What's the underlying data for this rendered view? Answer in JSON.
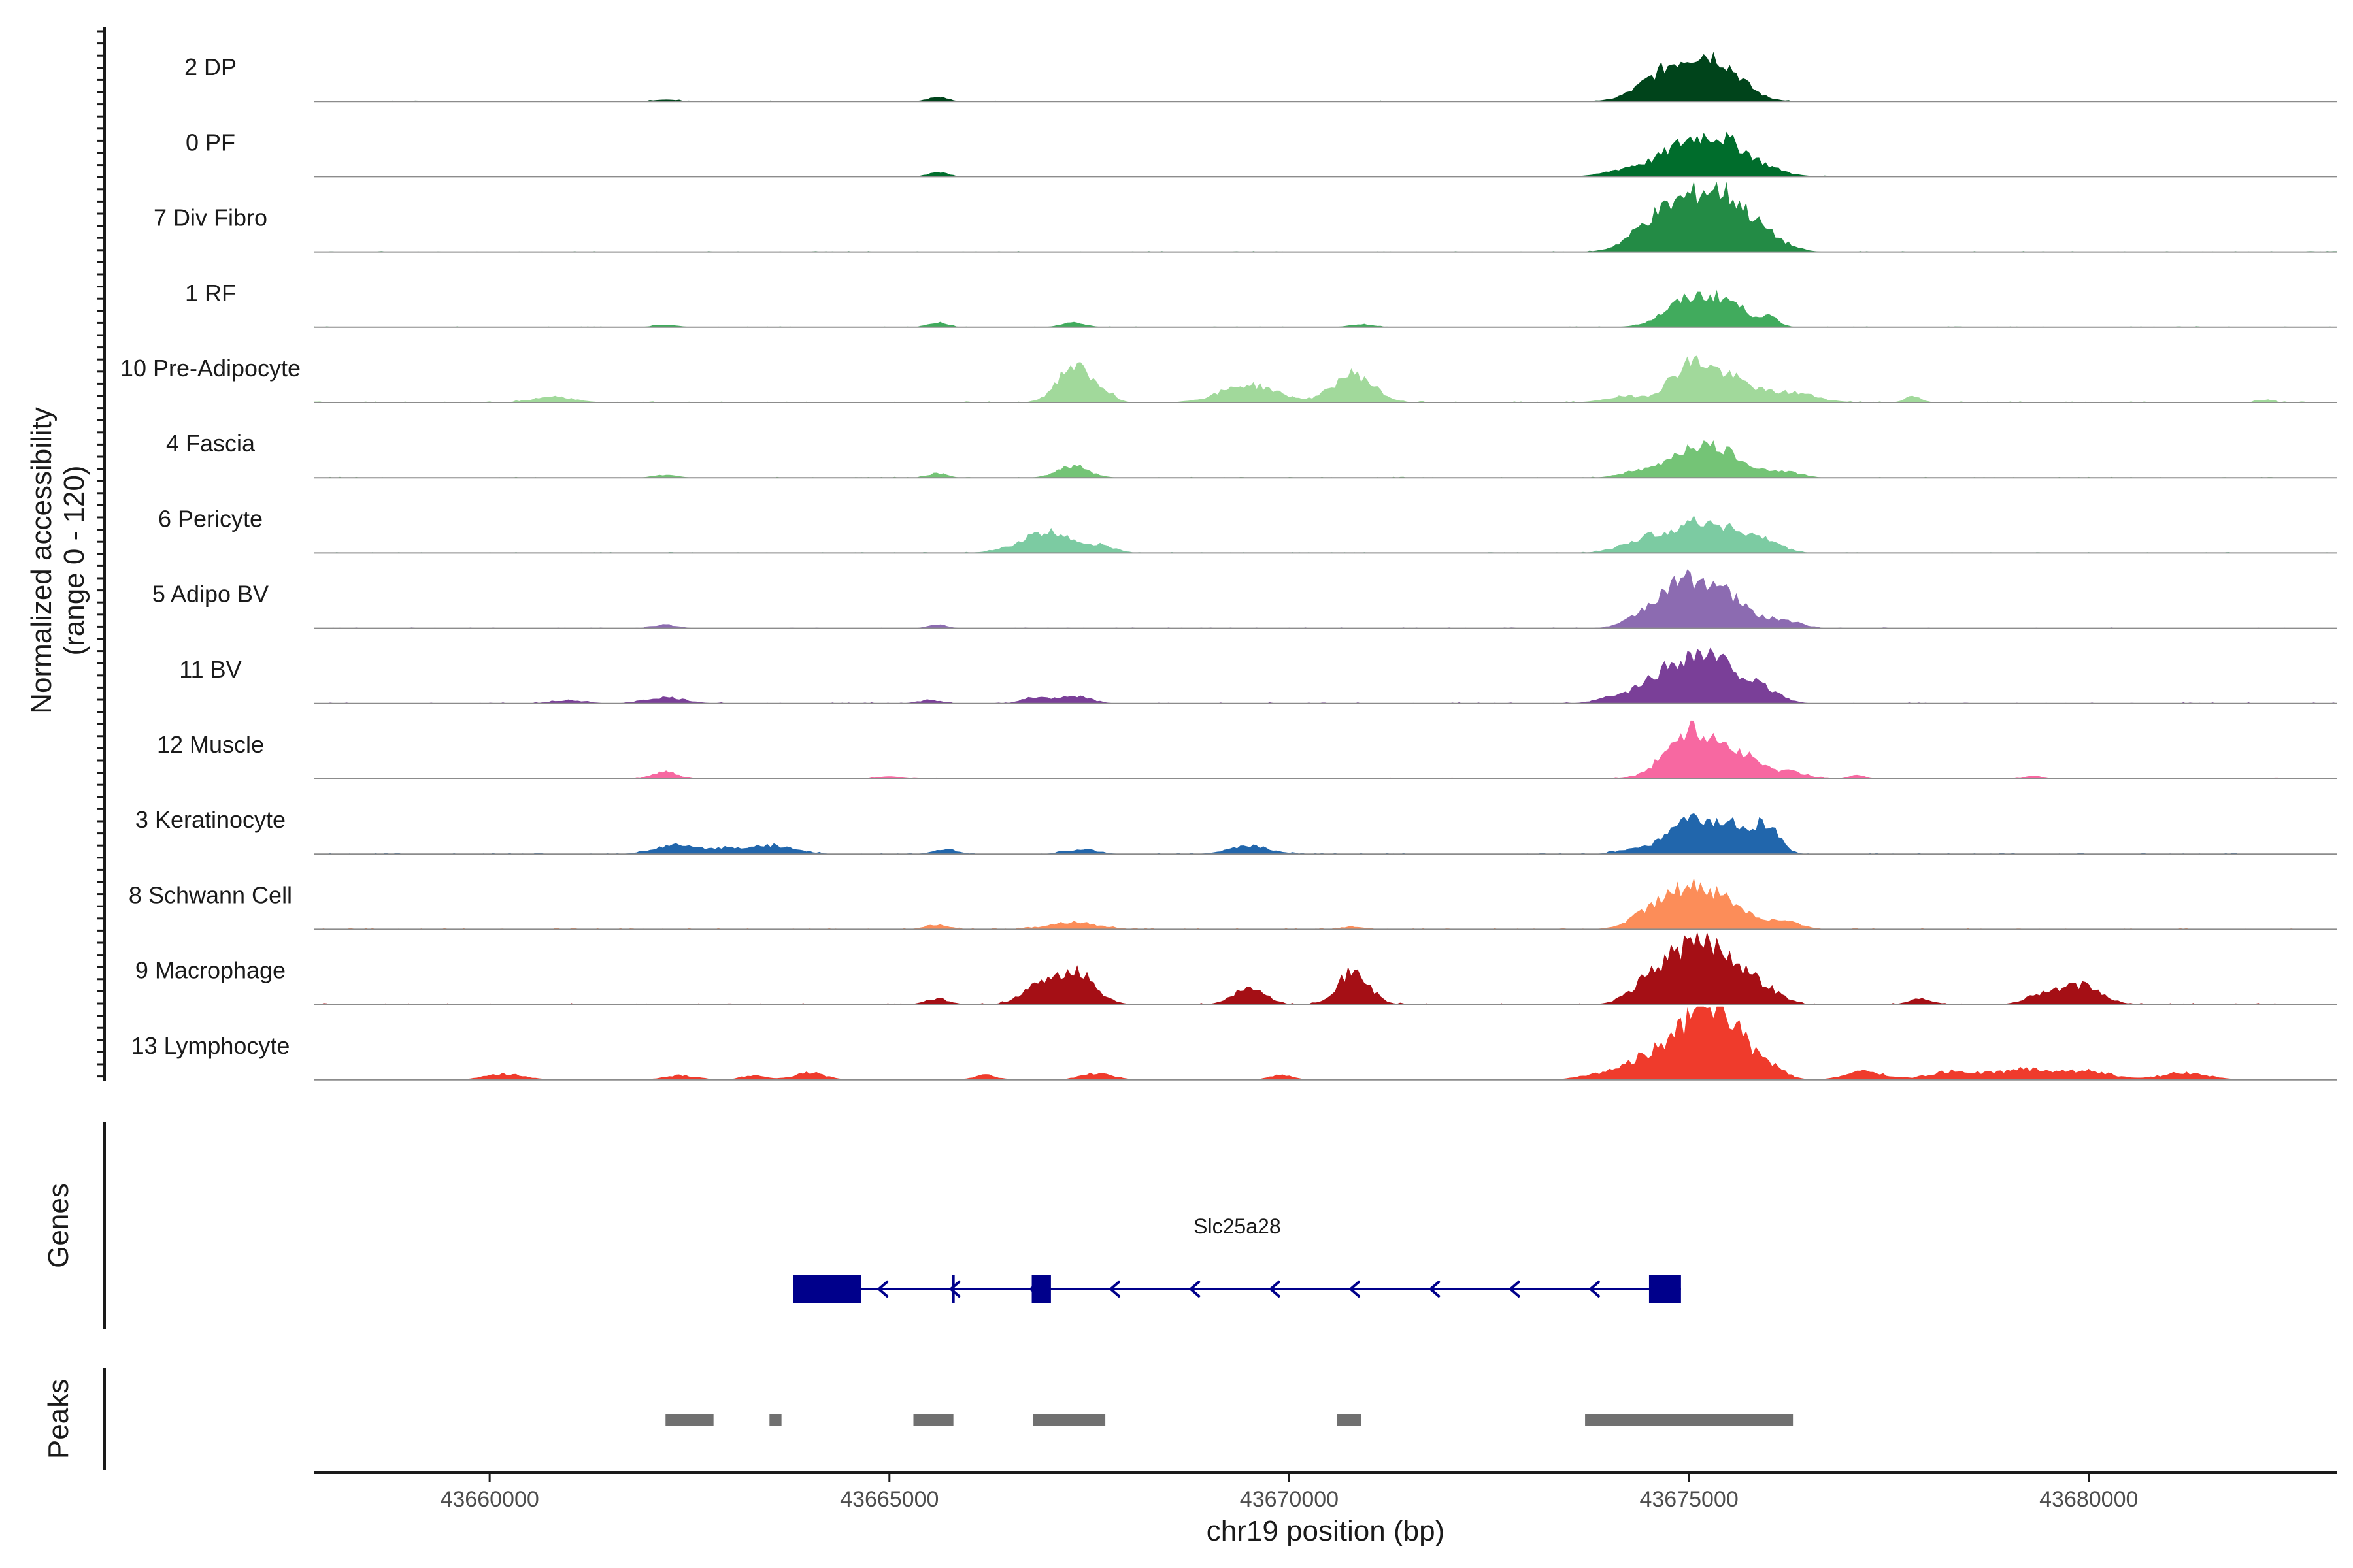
{
  "chart_data": {
    "type": "area",
    "title": "",
    "region": {
      "chrom": "chr19",
      "start": 43657800,
      "end": 43683100
    },
    "xlabel": "chr19 position (bp)",
    "ylabel_line1": "Normalized accessibility",
    "ylabel_line2": "(range 0 - 120)",
    "ylim": [
      0,
      120
    ],
    "x_ticks": [
      43660000,
      43665000,
      43670000,
      43675000,
      43680000
    ],
    "x_tick_labels": [
      "43660000",
      "43665000",
      "43670000",
      "43675000",
      "43680000"
    ],
    "genes_label": "Genes",
    "peaks_label": "Peaks",
    "tracks": [
      {
        "name": "2 DP",
        "color": "#00441b",
        "background": 1.5,
        "peaks": [
          [
            43675000,
            52,
            380
          ],
          [
            43675400,
            40,
            300
          ],
          [
            43674600,
            18,
            300
          ],
          [
            43665600,
            8,
            120
          ],
          [
            43662200,
            3,
            150
          ]
        ]
      },
      {
        "name": "0 PF",
        "color": "#006d2c",
        "background": 1.5,
        "peaks": [
          [
            43675000,
            54,
            320
          ],
          [
            43675500,
            44,
            280
          ],
          [
            43674300,
            14,
            300
          ],
          [
            43676000,
            10,
            250
          ],
          [
            43665600,
            8,
            120
          ]
        ]
      },
      {
        "name": "7 Div Fibro",
        "color": "#238b45",
        "background": 1.5,
        "peaks": [
          [
            43675000,
            72,
            350
          ],
          [
            43675500,
            68,
            300
          ],
          [
            43674500,
            30,
            280
          ],
          [
            43676000,
            18,
            250
          ]
        ]
      },
      {
        "name": "1 RF",
        "color": "#41ab5d",
        "background": 1.5,
        "peaks": [
          [
            43675000,
            45,
            300
          ],
          [
            43675500,
            35,
            250
          ],
          [
            43676000,
            14,
            120
          ],
          [
            43667300,
            8,
            150
          ],
          [
            43665600,
            8,
            120
          ],
          [
            43670900,
            5,
            150
          ],
          [
            43662200,
            4,
            150
          ]
        ]
      },
      {
        "name": "10 Pre-Adipocyte",
        "color": "#a1d99b",
        "background": 2.0,
        "peaks": [
          [
            43667300,
            62,
            200
          ],
          [
            43670800,
            48,
            250
          ],
          [
            43669500,
            30,
            350
          ],
          [
            43675000,
            58,
            250
          ],
          [
            43675500,
            38,
            300
          ],
          [
            43676300,
            16,
            300
          ],
          [
            43660800,
            10,
            250
          ],
          [
            43667700,
            16,
            120
          ],
          [
            43674200,
            10,
            250
          ],
          [
            43677800,
            10,
            100
          ],
          [
            43682200,
            5,
            100
          ]
        ]
      },
      {
        "name": "4 Fascia",
        "color": "#74c476",
        "background": 1.5,
        "peaks": [
          [
            43675000,
            45,
            300
          ],
          [
            43675500,
            32,
            280
          ],
          [
            43667300,
            20,
            200
          ],
          [
            43676200,
            10,
            200
          ],
          [
            43665600,
            8,
            120
          ],
          [
            43662200,
            5,
            150
          ],
          [
            43674300,
            8,
            200
          ]
        ]
      },
      {
        "name": "6 Pericyte",
        "color": "#7ccba2",
        "background": 1.5,
        "peaks": [
          [
            43667000,
            35,
            350
          ],
          [
            43675000,
            40,
            320
          ],
          [
            43675500,
            32,
            300
          ],
          [
            43674400,
            18,
            280
          ],
          [
            43676000,
            14,
            200
          ],
          [
            43667700,
            8,
            150
          ]
        ]
      },
      {
        "name": "5 Adipo BV",
        "color": "#8c6bb1",
        "background": 1.5,
        "peaks": [
          [
            43675000,
            72,
            320
          ],
          [
            43675500,
            38,
            300
          ],
          [
            43674500,
            20,
            250
          ],
          [
            43676200,
            12,
            200
          ],
          [
            43662200,
            6,
            150
          ],
          [
            43665600,
            6,
            120
          ]
        ]
      },
      {
        "name": "11 BV",
        "color": "#7a3f98",
        "background": 2.0,
        "peaks": [
          [
            43675000,
            68,
            320
          ],
          [
            43675500,
            45,
            300
          ],
          [
            43674500,
            22,
            250
          ],
          [
            43676000,
            14,
            200
          ],
          [
            43662200,
            10,
            250
          ],
          [
            43667300,
            14,
            200
          ],
          [
            43666800,
            10,
            150
          ],
          [
            43661000,
            6,
            200
          ],
          [
            43665500,
            6,
            150
          ],
          [
            43674000,
            8,
            200
          ]
        ]
      },
      {
        "name": "12 Muscle",
        "color": "#f768a1",
        "background": 1.2,
        "peaks": [
          [
            43675000,
            75,
            300
          ],
          [
            43675600,
            40,
            300
          ],
          [
            43676300,
            10,
            200
          ],
          [
            43662200,
            12,
            150
          ],
          [
            43665000,
            4,
            150
          ],
          [
            43677100,
            6,
            100
          ],
          [
            43679300,
            5,
            100
          ]
        ]
      },
      {
        "name": "3 Keratinocyte",
        "color": "#2166ac",
        "background": 2.0,
        "peaks": [
          [
            43675000,
            55,
            280
          ],
          [
            43675600,
            45,
            250
          ],
          [
            43676000,
            36,
            150
          ],
          [
            43662300,
            15,
            250
          ],
          [
            43663500,
            15,
            300
          ],
          [
            43662900,
            8,
            200
          ],
          [
            43669500,
            14,
            250
          ],
          [
            43665700,
            8,
            150
          ],
          [
            43667400,
            8,
            200
          ],
          [
            43674300,
            8,
            200
          ]
        ]
      },
      {
        "name": "8 Schwann Cell",
        "color": "#fc8d59",
        "background": 2.0,
        "peaks": [
          [
            43675000,
            62,
            300
          ],
          [
            43675500,
            36,
            300
          ],
          [
            43674500,
            22,
            250
          ],
          [
            43676200,
            12,
            200
          ],
          [
            43667300,
            12,
            300
          ],
          [
            43665600,
            8,
            150
          ],
          [
            43670800,
            4,
            150
          ]
        ]
      },
      {
        "name": "9 Macrophage",
        "color": "#a50f15",
        "background": 2.5,
        "peaks": [
          [
            43675000,
            85,
            320
          ],
          [
            43675500,
            62,
            280
          ],
          [
            43674500,
            28,
            250
          ],
          [
            43676000,
            18,
            200
          ],
          [
            43667300,
            58,
            250
          ],
          [
            43666800,
            22,
            200
          ],
          [
            43670800,
            55,
            200
          ],
          [
            43669500,
            28,
            200
          ],
          [
            43665600,
            10,
            150
          ],
          [
            43679900,
            32,
            250
          ],
          [
            43679400,
            16,
            200
          ],
          [
            43677900,
            10,
            150
          ]
        ]
      },
      {
        "name": "13 Lymphocyte",
        "color": "#ef3b2c",
        "background": 0.5,
        "peaks": [
          [
            43675100,
            95,
            300
          ],
          [
            43675500,
            70,
            250
          ],
          [
            43674500,
            32,
            250
          ],
          [
            43676000,
            20,
            200
          ],
          [
            43660200,
            10,
            250
          ],
          [
            43662400,
            8,
            200
          ],
          [
            43663300,
            8,
            150
          ],
          [
            43664000,
            12,
            200
          ],
          [
            43666200,
            8,
            150
          ],
          [
            43667600,
            12,
            200
          ],
          [
            43669900,
            8,
            150
          ],
          [
            43674000,
            12,
            300
          ],
          [
            43677200,
            14,
            250
          ],
          [
            43678300,
            14,
            300
          ],
          [
            43679200,
            18,
            350
          ],
          [
            43680000,
            14,
            300
          ],
          [
            43681200,
            12,
            300
          ]
        ]
      }
    ],
    "gene": {
      "name": "Slc25a28",
      "strand": "-",
      "start": 43663800,
      "end": 43674900,
      "color": "#00008b",
      "exons": [
        [
          43663800,
          43664650
        ],
        [
          43666780,
          43667020
        ],
        [
          43674500,
          43674900
        ]
      ],
      "tss_tick": 43665800,
      "arrow_positions": [
        43664900,
        43665800,
        43666800,
        43667800,
        43668800,
        43669800,
        43670800,
        43671800,
        43672800,
        43673800
      ]
    },
    "peak_regions": [
      [
        43662200,
        43662800
      ],
      [
        43663500,
        43663650
      ],
      [
        43665300,
        43665800
      ],
      [
        43666800,
        43667700
      ],
      [
        43670600,
        43670900
      ],
      [
        43673700,
        43676300
      ]
    ],
    "peak_color": "#707070",
    "axis_color": "#1a1a1a",
    "baseline_color": "#8c8c8c"
  }
}
